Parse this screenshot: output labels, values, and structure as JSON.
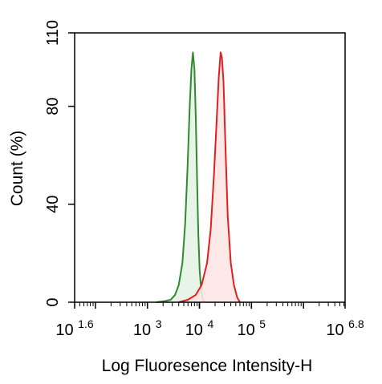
{
  "chart_data": {
    "type": "line",
    "title": "",
    "xlabel": "Log Fluoresence Intensity-H",
    "ylabel": "Count  (%)",
    "x_scale": "log",
    "xlim": [
      39.81,
      6309573
    ],
    "ylim": [
      0,
      110
    ],
    "x_ticks": [
      {
        "base": "10",
        "exp": "1.6",
        "value": 39.81
      },
      {
        "base": "10",
        "exp": "3",
        "value": 1000
      },
      {
        "base": "10",
        "exp": "4",
        "value": 10000
      },
      {
        "base": "10",
        "exp": "5",
        "value": 100000
      },
      {
        "base": "10",
        "exp": "6.8",
        "value": 6309573
      }
    ],
    "y_ticks": [
      {
        "label": "0",
        "value": 0
      },
      {
        "label": "40",
        "value": 40
      },
      {
        "label": "80",
        "value": 80
      },
      {
        "label": "110",
        "value": 110
      }
    ],
    "grid": false,
    "legend": "none",
    "series": [
      {
        "color": "#2e8b2e",
        "fill": "#e6f3e6",
        "x": [
          1500,
          2200,
          2800,
          3400,
          4000,
          4700,
          5300,
          5900,
          6500,
          7000,
          7500,
          8000,
          8500,
          9000,
          9500,
          10100,
          10800,
          11600,
          12500
        ],
        "y": [
          0,
          0.5,
          1,
          3,
          7,
          16,
          32,
          55,
          80,
          95,
          102,
          95,
          75,
          50,
          28,
          13,
          5,
          1,
          0
        ]
      },
      {
        "color": "#e02020",
        "fill": "#fde6e6",
        "x": [
          4000,
          6000,
          8500,
          11000,
          14000,
          16500,
          19000,
          21500,
          23500,
          25500,
          27000,
          29000,
          31500,
          35000,
          40000,
          46000,
          53000,
          60000
        ],
        "y": [
          0,
          1,
          3,
          7,
          16,
          30,
          52,
          75,
          92,
          102,
          100,
          90,
          65,
          35,
          16,
          7,
          2,
          0
        ]
      }
    ]
  }
}
